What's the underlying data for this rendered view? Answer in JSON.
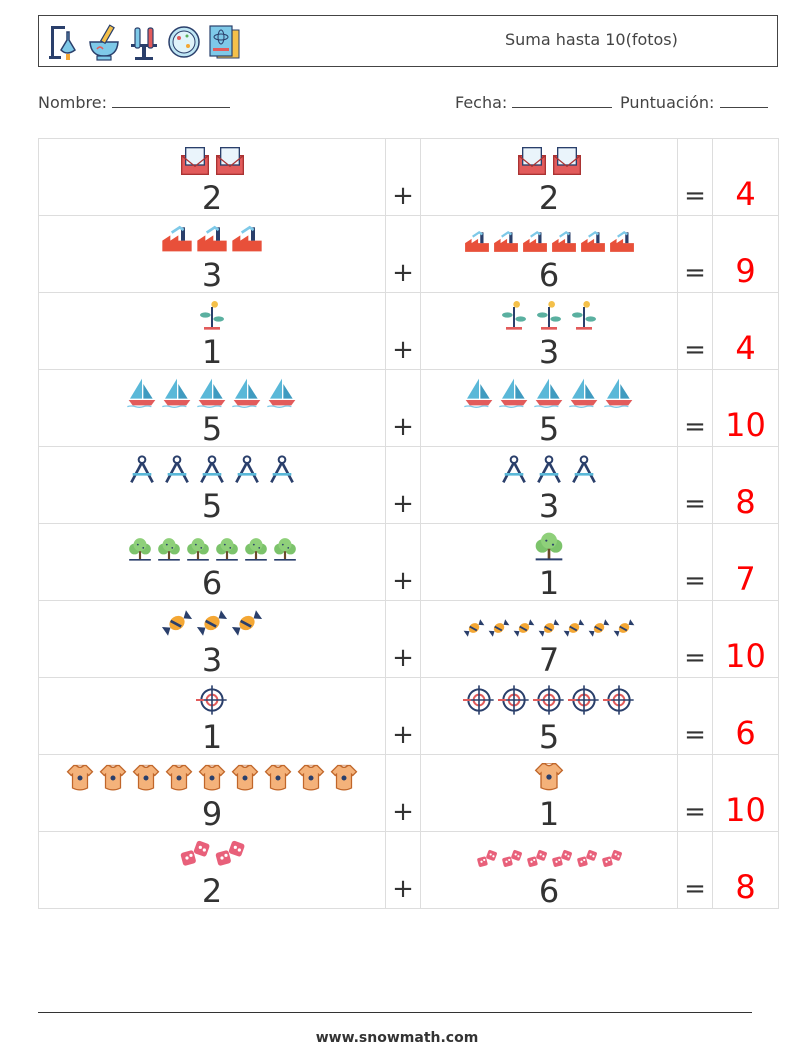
{
  "header": {
    "title": "Suma hasta 10(fotos)",
    "logo_icons": [
      "lab-stand-icon",
      "mortar-pestle-icon",
      "test-tubes-icon",
      "petri-dish-icon",
      "science-book-icon"
    ]
  },
  "info": {
    "name_label": "Nombre:",
    "date_label": "Fecha:",
    "score_label": "Puntuación:"
  },
  "plus_sign": "+",
  "equals_sign": "=",
  "problems": [
    {
      "a": 2,
      "a_icon": "envelope-icon",
      "b": 2,
      "b_icon": "envelope-icon",
      "answer": "4"
    },
    {
      "a": 3,
      "a_icon": "factory-icon",
      "b": 6,
      "b_icon": "factory-icon",
      "answer": "9"
    },
    {
      "a": 1,
      "a_icon": "plant-icon",
      "b": 3,
      "b_icon": "plant-icon",
      "answer": "4"
    },
    {
      "a": 5,
      "a_icon": "sailboat-icon",
      "b": 5,
      "b_icon": "sailboat-icon",
      "answer": "10"
    },
    {
      "a": 5,
      "a_icon": "compass-tool-icon",
      "b": 3,
      "b_icon": "compass-tool-icon",
      "answer": "8"
    },
    {
      "a": 6,
      "a_icon": "tree-icon",
      "b": 1,
      "b_icon": "tree-icon",
      "answer": "7"
    },
    {
      "a": 3,
      "a_icon": "candy-icon",
      "b": 7,
      "b_icon": "candy-icon",
      "answer": "10"
    },
    {
      "a": 1,
      "a_icon": "crosshair-icon",
      "b": 5,
      "b_icon": "crosshair-icon",
      "answer": "6"
    },
    {
      "a": 9,
      "a_icon": "baby-onesie-icon",
      "b": 1,
      "b_icon": "baby-onesie-icon",
      "answer": "10"
    },
    {
      "a": 2,
      "a_icon": "dice-icon",
      "b": 6,
      "b_icon": "dice-icon",
      "answer": "8"
    }
  ],
  "footer": {
    "url": "www.snowmath.com"
  },
  "colors": {
    "answer": "#ff0000",
    "border": "#dddddd"
  }
}
